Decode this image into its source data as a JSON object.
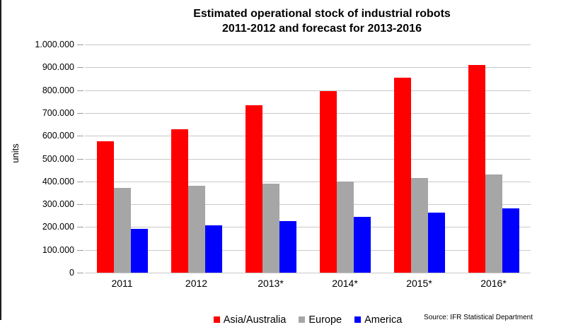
{
  "title": {
    "line1": "Estimated operational stock of industrial robots",
    "line2": "2011-2012 and forecast for 2013-2016"
  },
  "chart_data": {
    "type": "bar",
    "title": "Estimated operational stock of industrial robots",
    "subtitle": "2011-2012 and forecast for 2013-2016",
    "ylabel": "units",
    "xlabel": "",
    "categories": [
      "2011",
      "2012",
      "2013*",
      "2014*",
      "2015*",
      "2016*"
    ],
    "series": [
      {
        "name": "Asia/Australia",
        "color": "#ff0000",
        "values": [
          576000,
          630000,
          733000,
          795000,
          854000,
          910000
        ]
      },
      {
        "name": "Europe",
        "color": "#a6a6a6",
        "values": [
          370000,
          380000,
          389000,
          400000,
          414000,
          430000
        ]
      },
      {
        "name": "America",
        "color": "#0000ff",
        "values": [
          192000,
          207000,
          226000,
          244000,
          262000,
          282000
        ]
      }
    ],
    "ylim": [
      0,
      1000000
    ],
    "ytick_step": 100000,
    "ytick_labels": [
      "0",
      "100.000",
      "200.000",
      "300.000",
      "400.000",
      "500.000",
      "600.000",
      "700.000",
      "800.000",
      "900.000",
      "1.000.000"
    ],
    "grid": true,
    "legend_position": "bottom"
  },
  "colors": {
    "gridline": "#c9c9c9",
    "tick": "#9a9a9a",
    "left_edge": "#1c1c1c"
  },
  "source": {
    "label": "Source: IFR Statistical Department"
  }
}
